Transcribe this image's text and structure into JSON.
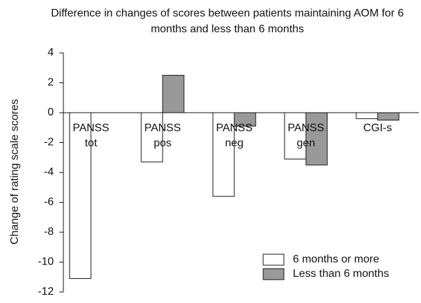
{
  "chart_data": {
    "type": "bar",
    "title": "Difference in changes of scores between patients maintaining AOM for 6 months and less than 6 months",
    "y_label": "Change of rating scale scores",
    "categories": [
      "PANSS tot",
      "PANSS pos",
      "PANSS neg",
      "PANSS gen",
      "CGI-s"
    ],
    "series": [
      {
        "name": "6 months or more",
        "color": "#ffffff",
        "values": [
          -11.1,
          -3.3,
          -5.6,
          -3.1,
          -0.4
        ]
      },
      {
        "name": "Less than 6 months",
        "color": "#999999",
        "values": [
          null,
          2.5,
          -0.9,
          -3.5,
          -0.5
        ]
      }
    ],
    "ylim": [
      -12,
      4
    ],
    "yticks": [
      -12,
      -10,
      -8,
      -6,
      -4,
      -2,
      0,
      2,
      4
    ],
    "legend": "lower right"
  }
}
